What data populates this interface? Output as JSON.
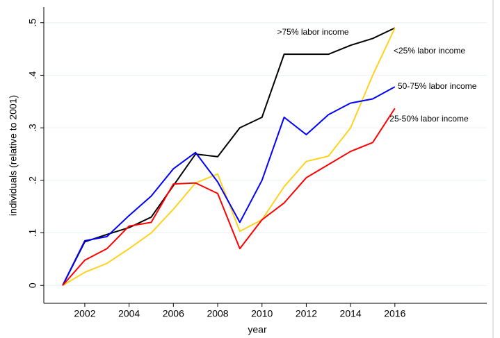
{
  "chart_data": {
    "type": "line",
    "y_label": "individuals (relative to 2001)",
    "x_label": "year",
    "x": [
      2001,
      2002,
      2003,
      2004,
      2005,
      2006,
      2007,
      2008,
      2009,
      2010,
      2011,
      2012,
      2013,
      2014,
      2015,
      2016
    ],
    "series": [
      {
        "name": ">75% labor income",
        "color": "#000000",
        "values": [
          0,
          0.083,
          0.097,
          0.11,
          0.13,
          0.19,
          0.25,
          0.245,
          0.3,
          0.32,
          0.44,
          0.44,
          0.44,
          0.457,
          0.47,
          0.49
        ]
      },
      {
        "name": "<25% labor income",
        "color": "#ffd21e",
        "values": [
          0,
          0.025,
          0.042,
          0.07,
          0.1,
          0.145,
          0.195,
          0.212,
          0.103,
          0.125,
          0.188,
          0.236,
          0.246,
          0.3,
          0.4,
          0.49
        ]
      },
      {
        "name": "50-75% labor income",
        "color": "#0000ff",
        "values": [
          0,
          0.085,
          0.093,
          0.133,
          0.17,
          0.222,
          0.253,
          0.197,
          0.12,
          0.2,
          0.32,
          0.287,
          0.325,
          0.347,
          0.355,
          0.378
        ]
      },
      {
        "name": "25-50% labor income",
        "color": "#ff0000",
        "values": [
          0,
          0.048,
          0.07,
          0.113,
          0.12,
          0.193,
          0.195,
          0.175,
          0.07,
          0.125,
          0.157,
          0.205,
          0.23,
          0.255,
          0.272,
          0.337
        ]
      }
    ],
    "xlim": [
      2000.15,
      2020.15
    ],
    "ylim": [
      -0.034,
      0.53
    ],
    "xticks": [
      2002,
      2004,
      2006,
      2008,
      2010,
      2012,
      2014,
      2016
    ],
    "yticks": [
      0,
      {
        "value": 0.1,
        "label": ".1"
      },
      {
        "value": 0.2,
        "label": ".2"
      },
      {
        "value": 0.3,
        "label": ".3"
      },
      {
        "value": 0.4,
        "label": ".4"
      },
      {
        "value": 0.5,
        "label": ".5"
      }
    ],
    "grid": true
  }
}
